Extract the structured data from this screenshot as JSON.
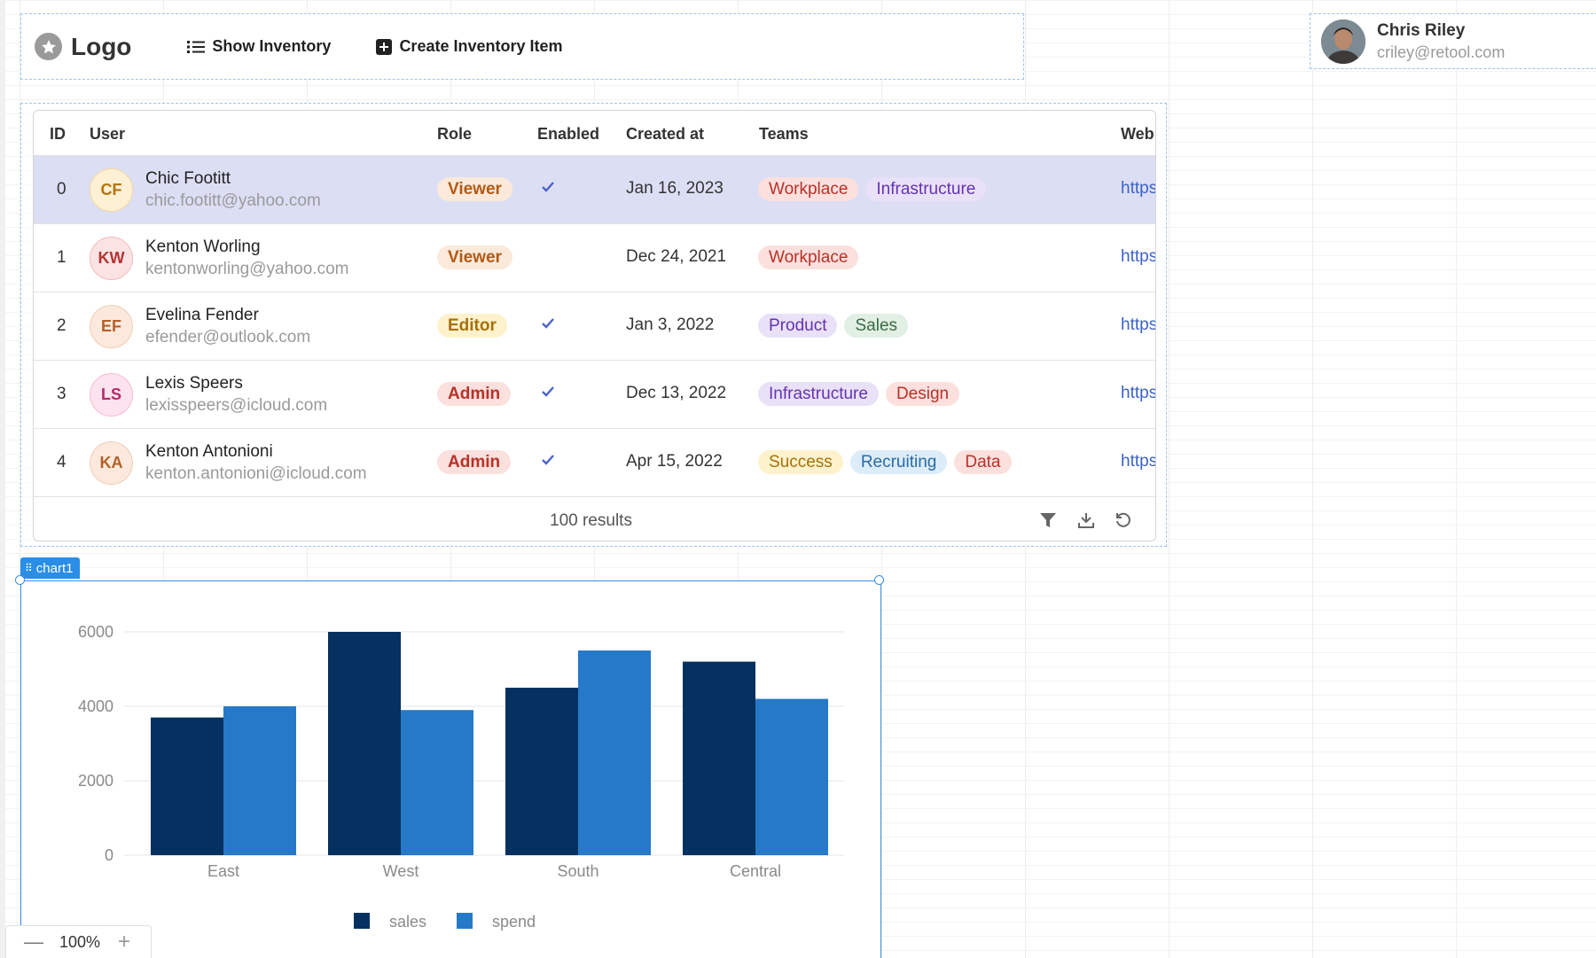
{
  "header": {
    "logo_text": "Logo",
    "nav": [
      {
        "label": "Show Inventory",
        "icon": "list-icon"
      },
      {
        "label": "Create Inventory Item",
        "icon": "plus-square-icon"
      }
    ]
  },
  "user": {
    "name": "Chris Riley",
    "email": "criley@retool.com"
  },
  "table": {
    "columns": [
      "ID",
      "User",
      "Role",
      "Enabled",
      "Created at",
      "Teams",
      "Web"
    ],
    "rows": [
      {
        "id": "0",
        "initials": "CF",
        "name": "Chic Footitt",
        "email": "chic.footitt@yahoo.com",
        "role": "Viewer",
        "enabled": true,
        "created": "Jan 16, 2023",
        "teams": [
          "Workplace",
          "Infrastructure"
        ],
        "web": "https://",
        "selected": true
      },
      {
        "id": "1",
        "initials": "KW",
        "name": "Kenton Worling",
        "email": "kentonworling@yahoo.com",
        "role": "Viewer",
        "enabled": false,
        "created": "Dec 24, 2021",
        "teams": [
          "Workplace"
        ],
        "web": "https://",
        "selected": false
      },
      {
        "id": "2",
        "initials": "EF",
        "name": "Evelina Fender",
        "email": "efender@outlook.com",
        "role": "Editor",
        "enabled": true,
        "created": "Jan 3, 2022",
        "teams": [
          "Product",
          "Sales"
        ],
        "web": "https://",
        "selected": false
      },
      {
        "id": "3",
        "initials": "LS",
        "name": "Lexis Speers",
        "email": "lexisspeers@icloud.com",
        "role": "Admin",
        "enabled": true,
        "created": "Dec 13, 2022",
        "teams": [
          "Infrastructure",
          "Design"
        ],
        "web": "https://",
        "selected": false
      },
      {
        "id": "4",
        "initials": "KA",
        "name": "Kenton Antonioni",
        "email": "kenton.antonioni@icloud.com",
        "role": "Admin",
        "enabled": true,
        "created": "Apr 15, 2022",
        "teams": [
          "Success",
          "Recruiting",
          "Data"
        ],
        "web": "https://",
        "selected": false
      }
    ],
    "footer": {
      "results": "100 results"
    }
  },
  "colors": {
    "avatar": {
      "CF": {
        "bg": "#fdf0d5",
        "fg": "#b5740f",
        "ring": "#f5d89a"
      },
      "KW": {
        "bg": "#fbe3e3",
        "fg": "#b33434",
        "ring": "#f2bcbc"
      },
      "EF": {
        "bg": "#fbe9de",
        "fg": "#b4602a",
        "ring": "#f2cdb4"
      },
      "LS": {
        "bg": "#fde3ee",
        "fg": "#b42a6b",
        "ring": "#f5bdd5"
      },
      "KA": {
        "bg": "#fbe9de",
        "fg": "#b4602a",
        "ring": "#f2cdb4"
      }
    },
    "role": {
      "Viewer": {
        "bg": "#fbe9da",
        "fg": "#b25a14"
      },
      "Editor": {
        "bg": "#fdf2cc",
        "fg": "#a8700a"
      },
      "Admin": {
        "bg": "#fbe0de",
        "fg": "#b83228"
      }
    },
    "team": {
      "Workplace": {
        "bg": "#fbe0de",
        "fg": "#b83228"
      },
      "Infrastructure": {
        "bg": "#e9e1f8",
        "fg": "#6433b0"
      },
      "Product": {
        "bg": "#e9e1f8",
        "fg": "#6433b0"
      },
      "Sales": {
        "bg": "#e2efe4",
        "fg": "#3a6b45"
      },
      "Design": {
        "bg": "#fbe0de",
        "fg": "#b83228"
      },
      "Success": {
        "bg": "#fdf2cc",
        "fg": "#a8700a"
      },
      "Recruiting": {
        "bg": "#dcecf8",
        "fg": "#2a6aa4"
      },
      "Data": {
        "bg": "#fbe0de",
        "fg": "#b83228"
      }
    },
    "check": "#4a63c9",
    "selected_row": "#dcdef4"
  },
  "chart_widget": {
    "tag": "chart1"
  },
  "chart_data": {
    "type": "bar",
    "categories": [
      "East",
      "West",
      "South",
      "Central"
    ],
    "series": [
      {
        "name": "sales",
        "values": [
          3700,
          6000,
          4500,
          5200
        ],
        "color": "#04315f"
      },
      {
        "name": "spend",
        "values": [
          4000,
          3900,
          5500,
          4200
        ],
        "color": "#2679c9"
      }
    ],
    "yticks": [
      0,
      2000,
      4000,
      6000
    ],
    "ylim": [
      0,
      6000
    ],
    "grid": true,
    "legend": "bottom-center",
    "title": "",
    "xlabel": "",
    "ylabel": ""
  },
  "zoom": {
    "value": "100%"
  }
}
